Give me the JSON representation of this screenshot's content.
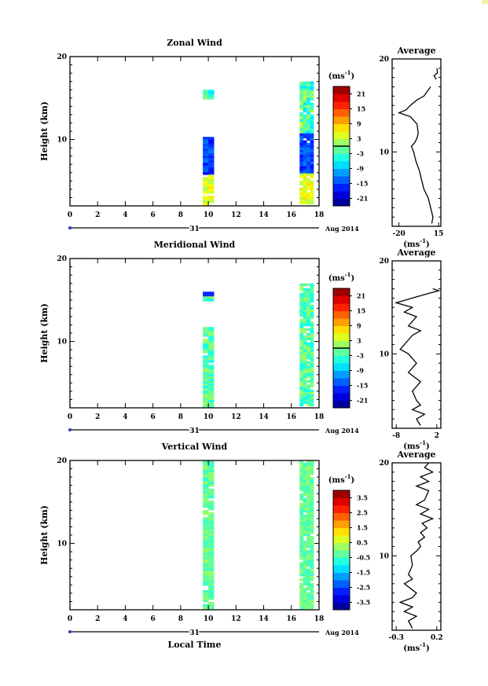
{
  "chart_data": [
    {
      "type": "heatmap",
      "id": "zonal",
      "title": "Zonal Wind",
      "xlabel": "",
      "ylabel": "Height (km)",
      "xlim": [
        0,
        18
      ],
      "ylim": [
        2,
        20
      ],
      "xticks": [
        "0",
        "2",
        "4",
        "6",
        "8",
        "10",
        "12",
        "14",
        "16",
        "18"
      ],
      "yticks": [
        {
          "v": 10,
          "label": "10"
        },
        {
          "v": 20,
          "label": "20"
        }
      ],
      "day_label": "31",
      "date_label": "Aug 2014",
      "colorbar": {
        "unit_base": "(ms",
        "unit_exp": "-1",
        "unit_end": ")",
        "min": -24,
        "max": 24,
        "labels": [
          "21",
          "15",
          "9",
          "3",
          "-3",
          "-9",
          "-15",
          "-21"
        ],
        "zero_line": 0
      },
      "columns": [
        [
          9.6,
          10.4
        ],
        [
          16.6,
          17.6
        ]
      ],
      "avg": {
        "title": "Average",
        "xlim": [
          -26,
          17
        ],
        "ylim": [
          2,
          20
        ],
        "xticks": [
          {
            "v": -20,
            "label": "-20"
          },
          {
            "v": 15,
            "label": "15"
          }
        ],
        "yticks": [
          {
            "v": 10,
            "label": "10"
          },
          {
            "v": 20,
            "label": "20"
          }
        ],
        "xunit_base": "(ms",
        "xunit_exp": "-1",
        "xunit_end": ")",
        "profile": [
          [
            2.3,
            9
          ],
          [
            3,
            10
          ],
          [
            4,
            8
          ],
          [
            5,
            6
          ],
          [
            6,
            2
          ],
          [
            7,
            0
          ],
          [
            8,
            -2
          ],
          [
            9,
            -5
          ],
          [
            10,
            -7
          ],
          [
            10.6,
            -9
          ],
          [
            11,
            -6
          ],
          [
            11.5,
            -4
          ],
          [
            12,
            -3
          ],
          [
            13,
            -4
          ],
          [
            13.8,
            -10
          ],
          [
            14.2,
            -20
          ],
          [
            14.5,
            -14
          ],
          [
            15,
            -10
          ],
          [
            15.6,
            -4
          ],
          [
            16,
            2
          ],
          [
            16.5,
            5
          ],
          [
            17,
            8
          ]
        ],
        "profile2": [
          [
            17.8,
            13
          ],
          [
            18.2,
            11
          ],
          [
            18.5,
            14
          ],
          [
            19,
            13.5
          ]
        ]
      }
    },
    {
      "type": "heatmap",
      "id": "meridional",
      "title": "Meridional Wind",
      "xlabel": "",
      "ylabel": "Height (km)",
      "xlim": [
        0,
        18
      ],
      "ylim": [
        2,
        20
      ],
      "xticks": [
        "0",
        "2",
        "4",
        "6",
        "8",
        "10",
        "12",
        "14",
        "16",
        "18"
      ],
      "yticks": [
        {
          "v": 10,
          "label": "10"
        },
        {
          "v": 20,
          "label": "20"
        }
      ],
      "day_label": "31",
      "date_label": "Aug 2014",
      "colorbar": {
        "unit_base": "(ms",
        "unit_exp": "-1",
        "unit_end": ")",
        "min": -24,
        "max": 24,
        "labels": [
          "21",
          "15",
          "9",
          "3",
          "-3",
          "-9",
          "-15",
          "-21"
        ],
        "zero_line": 0
      },
      "columns": [
        [
          9.6,
          10.4
        ],
        [
          16.6,
          17.6
        ]
      ],
      "avg": {
        "title": "Average",
        "xlim": [
          -9,
          3
        ],
        "ylim": [
          2,
          20
        ],
        "xticks": [
          {
            "v": -8,
            "label": "-8"
          },
          {
            "v": 2,
            "label": "2"
          }
        ],
        "yticks": [
          {
            "v": 10,
            "label": "10"
          },
          {
            "v": 20,
            "label": "20"
          }
        ],
        "xunit_base": "(ms",
        "xunit_exp": "-1",
        "xunit_end": ")",
        "profile": [
          [
            2.3,
            -2
          ],
          [
            3,
            -3
          ],
          [
            3.5,
            -1
          ],
          [
            4,
            -4
          ],
          [
            4.5,
            -2
          ],
          [
            5,
            -3
          ],
          [
            6,
            -4
          ],
          [
            7,
            -2
          ],
          [
            8,
            -5
          ],
          [
            9,
            -3
          ],
          [
            10,
            -5
          ],
          [
            10.5,
            -7
          ],
          [
            11,
            -6
          ],
          [
            12,
            -4
          ],
          [
            12.5,
            -2
          ],
          [
            13,
            -5
          ],
          [
            14,
            -3
          ],
          [
            14.5,
            -6
          ],
          [
            15,
            -4
          ],
          [
            15.5,
            -8
          ],
          [
            16,
            -4
          ],
          [
            16.5,
            0
          ],
          [
            16.8,
            2.5
          ],
          [
            17,
            1
          ]
        ]
      }
    },
    {
      "type": "heatmap",
      "id": "vertical",
      "title": "Vertical Wind",
      "xlabel": "Local Time",
      "ylabel": "Height (km)",
      "xlim": [
        0,
        18
      ],
      "ylim": [
        2,
        20
      ],
      "xticks": [
        "0",
        "2",
        "4",
        "6",
        "8",
        "10",
        "12",
        "14",
        "16",
        "18"
      ],
      "yticks": [
        {
          "v": 10,
          "label": "10"
        },
        {
          "v": 20,
          "label": "20"
        }
      ],
      "day_label": "31",
      "date_label": "Aug 2014",
      "colorbar": {
        "unit_base": "(ms",
        "unit_exp": "-1",
        "unit_end": ")",
        "min": -4,
        "max": 4,
        "labels": [
          "3.5",
          "2.5",
          "1.5",
          "0.5",
          "-0.5",
          "-1.5",
          "-2.5",
          "-3.5"
        ]
      },
      "columns": [
        [
          9.6,
          10.4
        ],
        [
          16.6,
          17.6
        ]
      ],
      "avg": {
        "title": "Average",
        "xlim": [
          -0.35,
          0.25
        ],
        "ylim": [
          2,
          20
        ],
        "xticks": [
          {
            "v": -0.3,
            "label": "-0.3"
          },
          {
            "v": 0.2,
            "label": "0.2"
          }
        ],
        "yticks": [
          {
            "v": 10,
            "label": "10"
          },
          {
            "v": 20,
            "label": "20"
          }
        ],
        "xunit_base": "(ms",
        "xunit_exp": "-1",
        "xunit_end": ")",
        "profile": [
          [
            2.2,
            -0.1
          ],
          [
            3,
            -0.15
          ],
          [
            3.5,
            -0.05
          ],
          [
            4,
            -0.2
          ],
          [
            4.5,
            -0.1
          ],
          [
            5,
            -0.25
          ],
          [
            5.5,
            -0.1
          ],
          [
            6,
            -0.05
          ],
          [
            7,
            -0.2
          ],
          [
            7.5,
            -0.1
          ],
          [
            8,
            -0.15
          ],
          [
            9,
            -0.1
          ],
          [
            10,
            -0.12
          ],
          [
            10.5,
            -0.05
          ],
          [
            11,
            0.0
          ],
          [
            11.5,
            -0.03
          ],
          [
            12,
            0.05
          ],
          [
            12.5,
            0.0
          ],
          [
            13,
            0.08
          ],
          [
            13.5,
            0.02
          ],
          [
            14,
            0.15
          ],
          [
            14.5,
            0.0
          ],
          [
            15,
            0.1
          ],
          [
            15.5,
            -0.05
          ],
          [
            16,
            0.05
          ],
          [
            17,
            0.1
          ],
          [
            17.5,
            -0.05
          ],
          [
            18,
            0.1
          ],
          [
            18.5,
            0.0
          ],
          [
            19,
            0.15
          ],
          [
            19.5,
            0.05
          ],
          [
            20,
            0.1
          ]
        ]
      }
    }
  ],
  "shared": {
    "xlabel_bottom": "Local Time"
  }
}
